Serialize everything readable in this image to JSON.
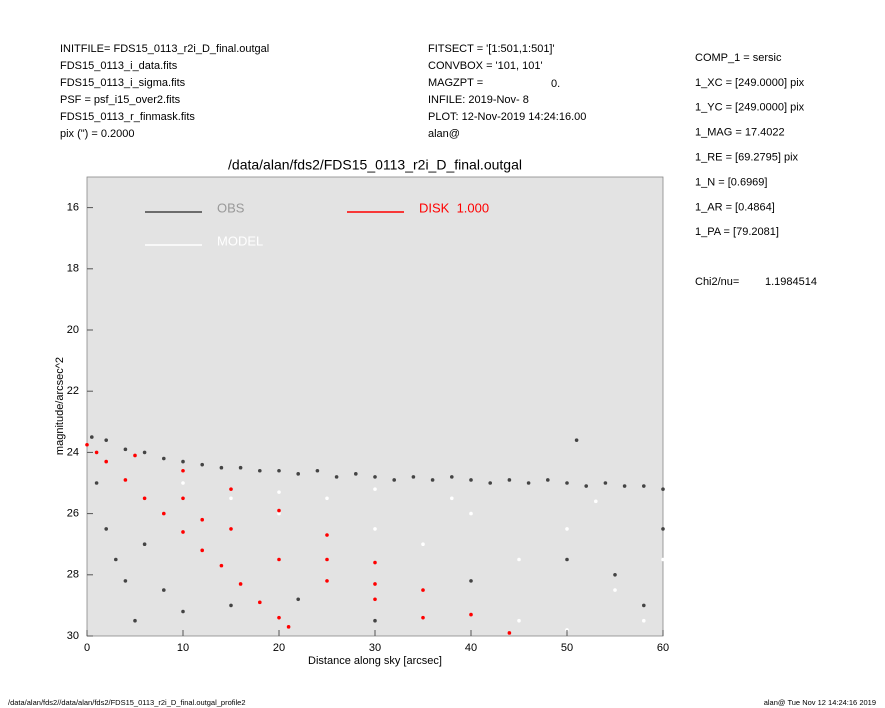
{
  "header": {
    "left": [
      "INITFILE= FDS15_0113_r2i_D_final.outgal",
      "FDS15_0113_i_data.fits",
      "FDS15_0113_i_sigma.fits",
      "PSF     = psf_i15_over2.fits",
      "FDS15_0113_r_finmask.fits",
      "pix (\") =  0.2000"
    ],
    "middle": [
      "FITSECT = '[1:501,1:501]'",
      "CONVBOX = '101, 101'",
      "MAGZPT =",
      "INFILE: 2019-Nov- 8",
      "PLOT: 12-Nov-2019 14:24:16.00",
      "alan@"
    ],
    "magzpt_value": "0.",
    "right": [
      "COMP_1  = sersic",
      "1_XC    = [249.0000] pix",
      "1_YC    = [249.0000] pix",
      "1_MAG   = 17.4022",
      "1_RE    = [69.2795] pix",
      "1_N     = [0.6969]",
      "1_AR    = [0.4864]",
      "1_PA    = [79.2081]"
    ],
    "chi_label": "Chi2/nu=",
    "chi_value": "1.1984514"
  },
  "footer": {
    "left": "/data/alan/fds2//data/alan/fds2/FDS15_0113_r2i_D_final.outgal_profile2",
    "right": "alan@  Tue Nov 12 14:24:16 2019"
  },
  "chart_data": {
    "type": "scatter",
    "title": "/data/alan/fds2/FDS15_0113_r2i_D_final.outgal",
    "xlabel": "Distance along sky [arcsec]",
    "ylabel": "magnitude/arcsec^2",
    "xlim": [
      0,
      60
    ],
    "xticks": [
      0,
      10,
      20,
      30,
      40,
      50,
      60
    ],
    "ylim": [
      15,
      30
    ],
    "yticks": [
      16,
      18,
      20,
      22,
      24,
      26,
      28,
      30
    ],
    "y_inverted": true,
    "background": "#e3e3e3",
    "series": [
      {
        "name": "OBS",
        "color": "#444444",
        "x": [
          0.5,
          2,
          4,
          6,
          8,
          10,
          12,
          14,
          16,
          18,
          20,
          22,
          24,
          26,
          28,
          30,
          32,
          34,
          36,
          38,
          40,
          42,
          44,
          46,
          48,
          50,
          52,
          54,
          56,
          58,
          60,
          51,
          1,
          2,
          3,
          4,
          6,
          8,
          10,
          5,
          15,
          22,
          30,
          40,
          50,
          55,
          58,
          60
        ],
        "values": [
          23.5,
          23.6,
          23.9,
          24.0,
          24.2,
          24.3,
          24.4,
          24.5,
          24.5,
          24.6,
          24.6,
          24.7,
          24.6,
          24.8,
          24.7,
          24.8,
          24.9,
          24.8,
          24.9,
          24.8,
          24.9,
          25.0,
          24.9,
          25.0,
          24.9,
          25.0,
          25.1,
          25.0,
          25.1,
          25.1,
          25.2,
          23.6,
          25.0,
          26.5,
          27.5,
          28.2,
          27.0,
          28.5,
          29.2,
          29.5,
          29.0,
          28.8,
          29.5,
          28.2,
          27.5,
          28.0,
          29.0,
          26.5
        ]
      },
      {
        "name": "MODEL",
        "color": "#ffffff",
        "x": [
          15,
          20,
          25,
          30,
          35,
          40,
          45,
          50,
          55,
          58,
          45,
          50,
          30,
          20,
          10,
          60,
          53,
          38
        ],
        "values": [
          25.5,
          26.0,
          25.5,
          26.5,
          27.0,
          26.0,
          27.5,
          26.5,
          28.5,
          29.5,
          29.5,
          29.8,
          25.2,
          25.3,
          25.0,
          27.5,
          25.6,
          25.5
        ]
      },
      {
        "name": "DISK  1.000",
        "color": "#ff0000",
        "x": [
          0,
          1,
          2,
          4,
          6,
          8,
          10,
          12,
          14,
          16,
          18,
          20,
          21,
          5,
          10,
          15,
          20,
          25,
          30,
          35,
          40,
          44,
          10,
          15,
          20,
          25,
          30,
          35,
          12,
          25,
          30
        ],
        "values": [
          23.75,
          24.0,
          24.3,
          24.9,
          25.5,
          26.0,
          26.6,
          27.2,
          27.7,
          28.3,
          28.9,
          29.4,
          29.7,
          24.1,
          24.6,
          25.2,
          25.9,
          26.7,
          27.6,
          28.5,
          29.3,
          29.9,
          25.5,
          26.5,
          27.5,
          28.2,
          28.8,
          29.4,
          26.2,
          27.5,
          28.3
        ]
      }
    ]
  }
}
